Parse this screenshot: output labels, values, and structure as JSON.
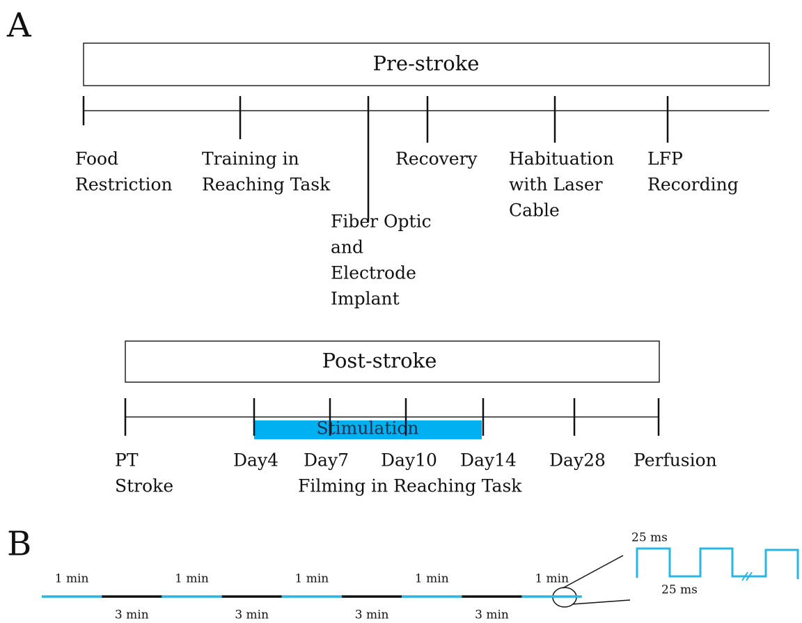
{
  "panel_a": {
    "label": "A",
    "pre_stroke": {
      "title": "Pre-stroke",
      "events": [
        [
          "Food",
          "Restriction"
        ],
        [
          "Training in",
          "Reaching Task"
        ],
        [
          "Fiber Optic",
          "and",
          "Electrode",
          "Implant"
        ],
        [
          "Recovery"
        ],
        [
          "Habituation",
          "with Laser",
          "Cable"
        ],
        [
          "LFP",
          "Recording"
        ]
      ]
    },
    "post_stroke": {
      "title": "Post-stroke",
      "stimulation": "Stimulation",
      "events": [
        [
          "PT",
          "Stroke"
        ],
        [
          "Day4"
        ],
        [
          "Day7"
        ],
        [
          "Day10"
        ],
        [
          "Day14"
        ],
        [
          "Day28"
        ],
        [
          "Perfusion"
        ]
      ],
      "filming": "Filming in Reaching Task"
    }
  },
  "panel_b": {
    "label": "B",
    "on_labels": [
      "1 min",
      "1 min",
      "1 min",
      "1 min",
      "1 min"
    ],
    "off_labels": [
      "3 min",
      "3 min",
      "3 min",
      "3 min"
    ],
    "pulse_on": "25 ms",
    "pulse_off": "25 ms"
  }
}
